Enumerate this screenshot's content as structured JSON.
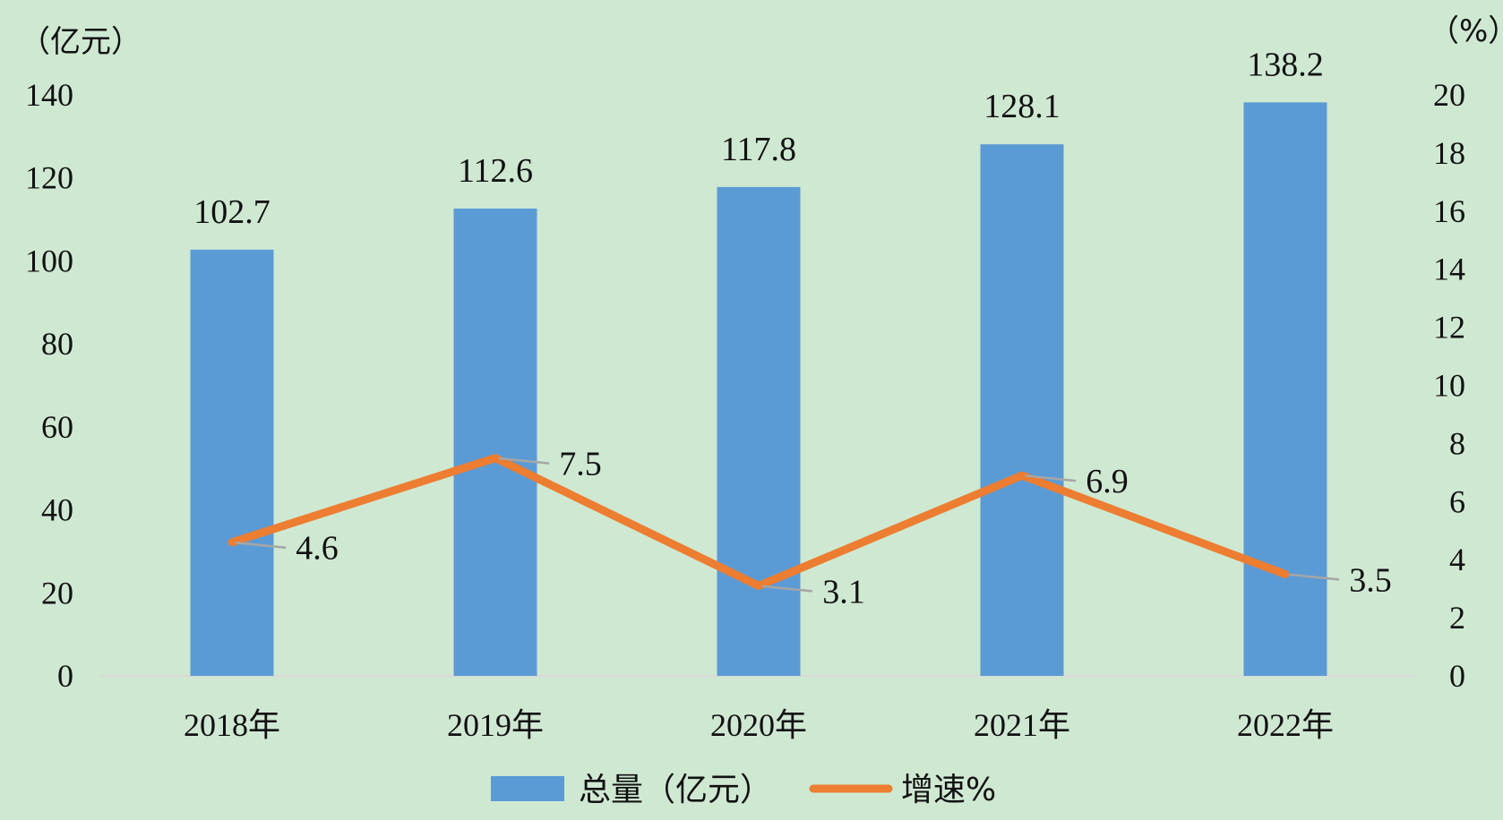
{
  "chart_data": {
    "type": "bar",
    "categories": [
      "2018年",
      "2019年",
      "2020年",
      "2021年",
      "2022年"
    ],
    "series": [
      {
        "name": "总量（亿元）",
        "type": "bar",
        "axis": "left",
        "values": [
          102.7,
          112.6,
          117.8,
          128.1,
          138.2
        ],
        "color": "#5b9bd5"
      },
      {
        "name": "增速%",
        "type": "line",
        "axis": "right",
        "values": [
          4.6,
          7.5,
          3.1,
          6.9,
          3.5
        ],
        "color": "#ed7d31"
      }
    ],
    "y_left": {
      "unit_label": "（亿元）",
      "ylim": [
        0,
        140
      ],
      "ticks": [
        0,
        20,
        40,
        60,
        80,
        100,
        120,
        140
      ]
    },
    "y_right": {
      "unit_label": "（%）",
      "ylim": [
        0,
        20
      ],
      "ticks": [
        0,
        2,
        4,
        6,
        8,
        10,
        12,
        14,
        16,
        18,
        20
      ]
    },
    "grid": false,
    "legend_position": "bottom",
    "colors": {
      "background": "#cfe8d2",
      "bar": "#5b9bd5",
      "line": "#ed7d31",
      "leader": "#a6a6a6"
    }
  }
}
